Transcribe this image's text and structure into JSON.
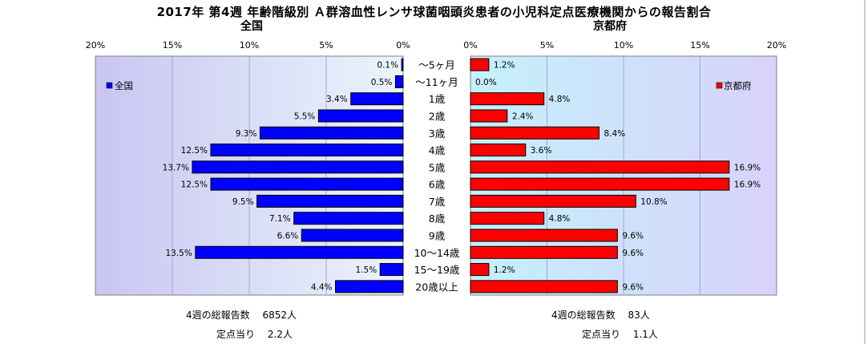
{
  "title": "2017年 第4週 年齢階級別 Ａ群溶血性レンサ球菌咽頭炎患者の小児科定点医療機関からの報告割合",
  "chart_data": {
    "type": "bar",
    "orientation": "horizontal-butterfly",
    "categories": [
      "～5ヶ月",
      "～11ヶ月",
      "1歳",
      "2歳",
      "3歳",
      "4歳",
      "5歳",
      "6歳",
      "7歳",
      "8歳",
      "9歳",
      "10～14歳",
      "15～19歳",
      "20歳以上"
    ],
    "xlim": [
      0,
      20
    ],
    "ticks": [
      "0%",
      "5%",
      "10%",
      "15%",
      "20%"
    ],
    "grid": true,
    "series": [
      {
        "name": "全国",
        "panel_title": "全国",
        "side": "left",
        "color": "#0000ff",
        "values": [
          0.1,
          0.5,
          3.4,
          5.5,
          9.3,
          12.5,
          13.7,
          12.5,
          9.5,
          7.1,
          6.6,
          13.5,
          1.5,
          4.4
        ],
        "labels": [
          "0.1%",
          "0.5%",
          "3.4%",
          "5.5%",
          "9.3%",
          "12.5%",
          "13.7%",
          "12.5%",
          "9.5%",
          "7.1%",
          "6.6%",
          "13.5%",
          "1.5%",
          "4.4%"
        ],
        "legend_position": "top-left"
      },
      {
        "name": "京都府",
        "panel_title": "京都府",
        "side": "right",
        "color": "#ff0000",
        "values": [
          1.2,
          0.0,
          4.8,
          2.4,
          8.4,
          3.6,
          16.9,
          16.9,
          10.8,
          4.8,
          9.6,
          9.6,
          1.2,
          9.6
        ],
        "labels": [
          "1.2%",
          "0.0%",
          "4.8%",
          "2.4%",
          "8.4%",
          "3.6%",
          "16.9%",
          "16.9%",
          "10.8%",
          "4.8%",
          "9.6%",
          "9.6%",
          "1.2%",
          "9.6%"
        ],
        "legend_position": "top-right"
      }
    ]
  },
  "footer": {
    "national_total": "4週の総報告数　 6852人",
    "national_per_site": "定点当り　 2.2人",
    "kyoto_total": "4週の総報告数　 83人",
    "kyoto_per_site": "定点当り　 1.1人"
  }
}
